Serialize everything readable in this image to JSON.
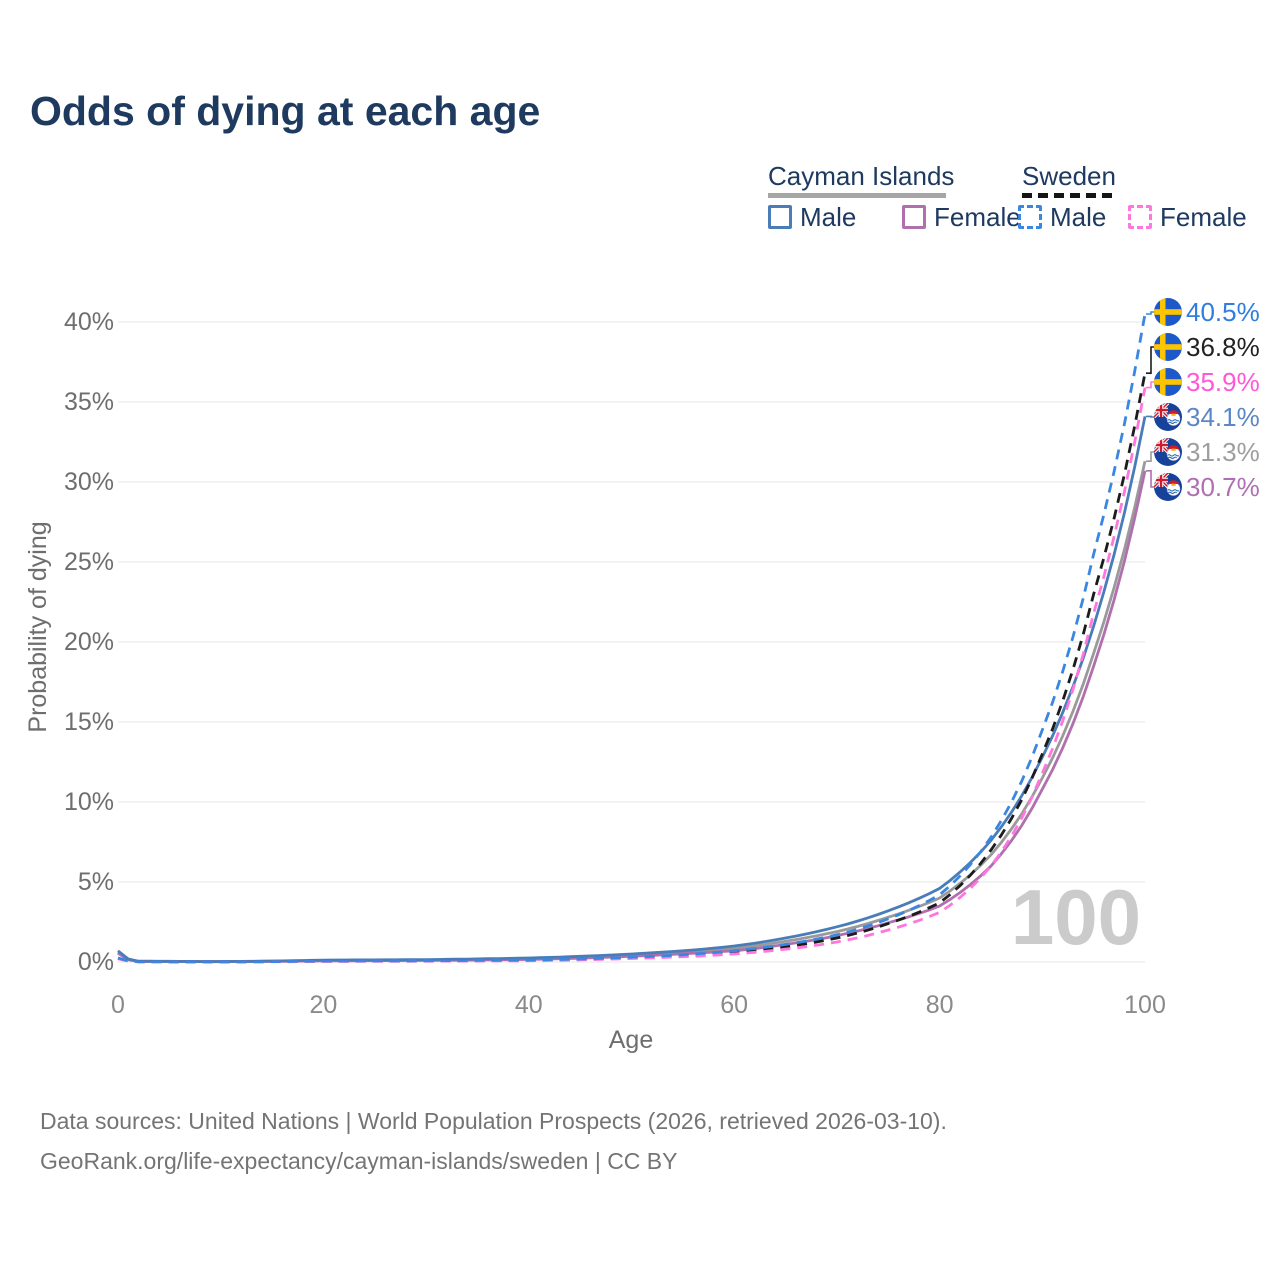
{
  "title": "Odds of dying at each age",
  "watermark": "100",
  "legend": {
    "cayman": {
      "label": "Cayman Islands",
      "male_label": "Male",
      "female_label": "Female",
      "male_color": "#4a7db8",
      "female_color": "#b070ae",
      "header_line_color": "#a6a6a6"
    },
    "sweden": {
      "label": "Sweden",
      "male_label": "Male",
      "female_label": "Female",
      "male_color": "#3a87e2",
      "female_color": "#ff76de",
      "header_line_color": "#151515"
    }
  },
  "footer": {
    "line1": "Data sources: United Nations | World Population Prospects (2026, retrieved 2026-03-10).",
    "line2": "GeoRank.org/life-expectancy/cayman-islands/sweden | CC BY"
  },
  "chart_data": {
    "type": "line",
    "title": "Odds of dying at each age",
    "xlabel": "Age",
    "ylabel": "Probability of dying",
    "xlim": [
      0,
      100
    ],
    "ylim": [
      0,
      42
    ],
    "grid": "horizontal-only",
    "x_ticks": [
      0,
      20,
      40,
      60,
      80,
      100
    ],
    "y_ticks": [
      "0%",
      "5%",
      "10%",
      "15%",
      "20%",
      "25%",
      "30%",
      "35%",
      "40%"
    ],
    "y_tick_values": [
      0,
      5,
      10,
      15,
      20,
      25,
      30,
      35,
      40
    ],
    "ages": [
      0,
      2,
      10,
      20,
      30,
      40,
      50,
      55,
      60,
      65,
      70,
      75,
      80,
      85,
      90,
      95,
      100
    ],
    "series": [
      {
        "name": "Cayman Islands — Both sexes",
        "country": "Cayman Islands",
        "flag": "cayman",
        "color": "#9a9a9a",
        "label_color": "#9e9e9e",
        "dashed": false,
        "end_label": "31.3%",
        "end_value": 31.3,
        "values": [
          0.6,
          0.04,
          0.025,
          0.09,
          0.12,
          0.2,
          0.42,
          0.6,
          0.85,
          1.3,
          1.9,
          2.8,
          4.0,
          6.7,
          11.5,
          19.3,
          31.3
        ]
      },
      {
        "name": "Cayman Islands — Female",
        "country": "Cayman Islands",
        "flag": "cayman",
        "color": "#b070ae",
        "label_color": "#b06fb3",
        "dashed": false,
        "end_label": "30.7%",
        "end_value": 30.7,
        "values": [
          0.55,
          0.035,
          0.02,
          0.07,
          0.1,
          0.16,
          0.36,
          0.52,
          0.7,
          1.1,
          1.65,
          2.45,
          3.5,
          6.0,
          10.8,
          18.5,
          30.7
        ]
      },
      {
        "name": "Cayman Islands — Male",
        "country": "Cayman Islands",
        "flag": "cayman",
        "color": "#4a7db8",
        "label_color": "#5b87c7",
        "dashed": false,
        "end_label": "34.1%",
        "end_value": 34.1,
        "values": [
          0.7,
          0.05,
          0.03,
          0.12,
          0.15,
          0.25,
          0.5,
          0.7,
          1.0,
          1.5,
          2.2,
          3.2,
          4.6,
          7.6,
          12.8,
          21.0,
          34.1
        ]
      },
      {
        "name": "Sweden — Both sexes",
        "country": "Sweden",
        "flag": "sweden",
        "color": "#1c1c1c",
        "label_color": "#222222",
        "dashed": true,
        "end_label": "36.8%",
        "end_value": 36.8,
        "values": [
          0.22,
          0.02,
          0.01,
          0.05,
          0.07,
          0.1,
          0.26,
          0.4,
          0.6,
          0.95,
          1.5,
          2.4,
          3.7,
          7.0,
          13.0,
          23.0,
          36.8
        ]
      },
      {
        "name": "Sweden — Female",
        "country": "Sweden",
        "flag": "sweden",
        "color": "#ff76de",
        "label_color": "#ff57d8",
        "dashed": true,
        "end_label": "35.9%",
        "end_value": 35.9,
        "values": [
          0.2,
          0.015,
          0.01,
          0.03,
          0.05,
          0.08,
          0.22,
          0.33,
          0.5,
          0.8,
          1.25,
          2.0,
          3.1,
          6.0,
          11.8,
          21.8,
          35.9
        ]
      },
      {
        "name": "Sweden — Male",
        "country": "Sweden",
        "flag": "sweden",
        "color": "#3a87e2",
        "label_color": "#2f7de1",
        "dashed": true,
        "end_label": "40.5%",
        "end_value": 40.5,
        "values": [
          0.25,
          0.02,
          0.01,
          0.06,
          0.08,
          0.12,
          0.3,
          0.45,
          0.7,
          1.1,
          1.7,
          2.7,
          4.2,
          7.8,
          14.5,
          25.5,
          40.5
        ]
      }
    ]
  }
}
